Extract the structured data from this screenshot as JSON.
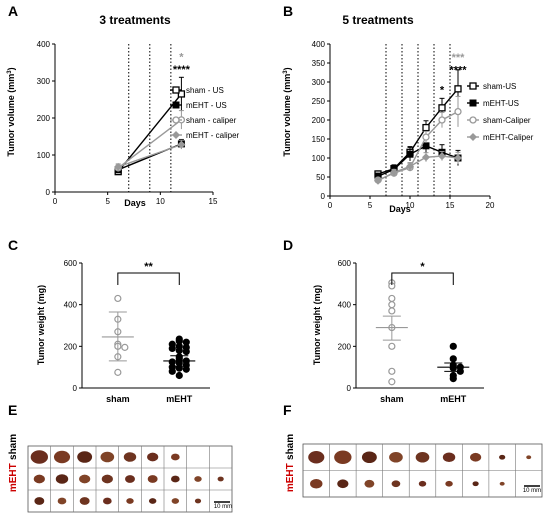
{
  "panels": {
    "A": {
      "letter": "A",
      "chart_data": {
        "type": "line",
        "title": "3 treatments",
        "xlabel": "Days",
        "ylabel": "Tumor volume (mm",
        "ylabel_sup": "3",
        "ylabel_end": ")",
        "xlim": [
          0,
          15
        ],
        "ylim": [
          0,
          400
        ],
        "xticks": [
          0,
          5,
          10,
          15
        ],
        "yticks": [
          0,
          100,
          200,
          300,
          400
        ],
        "treatment_days": [
          7,
          9,
          11
        ],
        "series": [
          {
            "name": "sham - US",
            "color": "#000000",
            "marker": "square-open",
            "x": [
              6,
              12
            ],
            "y": [
              55,
              265
            ],
            "err": [
              8,
              45
            ]
          },
          {
            "name": "mEHT - US",
            "color": "#000000",
            "marker": "square-filled",
            "x": [
              6,
              12
            ],
            "y": [
              60,
              130
            ],
            "err": [
              8,
              12
            ]
          },
          {
            "name": "sham - caliper",
            "color": "#999999",
            "marker": "circle-open",
            "x": [
              6,
              12
            ],
            "y": [
              65,
              195
            ],
            "err": [
              8,
              25
            ]
          },
          {
            "name": "mEHT - caliper",
            "color": "#999999",
            "marker": "diamond-filled",
            "x": [
              6,
              12
            ],
            "y": [
              68,
              128
            ],
            "err": [
              8,
              12
            ]
          }
        ],
        "annotations": [
          {
            "text": "*",
            "color": "#999999",
            "x": 12,
            "y": 355
          },
          {
            "text": "****",
            "color": "#000000",
            "x": 12,
            "y": 322
          }
        ],
        "legend_position": "right"
      }
    },
    "B": {
      "letter": "B",
      "chart_data": {
        "type": "line",
        "title": "5 treatments",
        "xlabel": "Days",
        "ylabel": "Tumor volume (mm",
        "ylabel_sup": "3",
        "ylabel_end": ")",
        "xlim": [
          0,
          20
        ],
        "ylim": [
          0,
          400
        ],
        "xticks": [
          0,
          5,
          10,
          15,
          20
        ],
        "yticks": [
          0,
          50,
          100,
          150,
          200,
          250,
          300,
          350,
          400
        ],
        "treatment_days": [
          7,
          9,
          11,
          13,
          15
        ],
        "series": [
          {
            "name": "sham-US",
            "color": "#000000",
            "marker": "square-open",
            "x": [
              6,
              8,
              10,
              12,
              14,
              16
            ],
            "y": [
              58,
              72,
              115,
              180,
              232,
              282
            ],
            "err": [
              8,
              10,
              15,
              18,
              25,
              50
            ]
          },
          {
            "name": "mEHT-US",
            "color": "#000000",
            "marker": "square-filled",
            "x": [
              6,
              8,
              10,
              12,
              14,
              16
            ],
            "y": [
              52,
              70,
              110,
              132,
              115,
              100
            ],
            "err": [
              8,
              10,
              18,
              20,
              20,
              20
            ]
          },
          {
            "name": "sham-Caliper",
            "color": "#999999",
            "marker": "circle-open",
            "x": [
              6,
              8,
              10,
              12,
              14,
              16
            ],
            "y": [
              42,
              60,
              75,
              155,
              200,
              222
            ],
            "err": [
              6,
              8,
              10,
              15,
              20,
              40
            ]
          },
          {
            "name": "mEHT-Caliper",
            "color": "#999999",
            "marker": "diamond-filled",
            "x": [
              6,
              8,
              10,
              12,
              14,
              16
            ],
            "y": [
              40,
              62,
              78,
              102,
              105,
              100
            ],
            "err": [
              6,
              8,
              10,
              12,
              12,
              15
            ]
          }
        ],
        "annotations": [
          {
            "text": "*",
            "color": "#000000",
            "x": 14,
            "y": 270
          },
          {
            "text": "***",
            "color": "#999999",
            "x": 16,
            "y": 355
          },
          {
            "text": "****",
            "color": "#000000",
            "x": 16,
            "y": 322
          }
        ],
        "legend_position": "right"
      }
    },
    "C": {
      "letter": "C",
      "chart_data": {
        "type": "scatter",
        "xlabel": "",
        "ylabel": "Tumor weight (mg)",
        "ylim": [
          0,
          600
        ],
        "yticks": [
          0,
          200,
          400,
          600
        ],
        "categories": [
          "sham",
          "mEHT"
        ],
        "groups": [
          {
            "name": "sham",
            "filled": false,
            "mean": 245,
            "sem": [
              130,
              365
            ],
            "values": [
              430,
              330,
              270,
              210,
              200,
              195,
              150,
              75
            ]
          },
          {
            "name": "mEHT",
            "filled": true,
            "mean": 130,
            "sem": [
              105,
              155
            ],
            "values": [
              235,
              225,
              220,
              210,
              200,
              195,
              190,
              180,
              175,
              150,
              140,
              130,
              125,
              120,
              110,
              100,
              95,
              90,
              80,
              60
            ]
          }
        ],
        "significance": "**"
      }
    },
    "D": {
      "letter": "D",
      "chart_data": {
        "type": "scatter",
        "xlabel": "",
        "ylabel": "Tumor weight (mg)",
        "ylim": [
          0,
          600
        ],
        "yticks": [
          0,
          200,
          400,
          600
        ],
        "categories": [
          "sham",
          "mEHT"
        ],
        "groups": [
          {
            "name": "sham",
            "filled": false,
            "mean": 290,
            "sem": [
              230,
              345
            ],
            "values": [
              505,
              490,
              430,
              400,
              370,
              290,
              200,
              80,
              30
            ]
          },
          {
            "name": "mEHT",
            "filled": true,
            "mean": 100,
            "sem": [
              80,
              120
            ],
            "values": [
              200,
              140,
              110,
              100,
              95,
              80,
              60,
              45
            ]
          }
        ],
        "significance": "*"
      }
    },
    "E": {
      "letter": "E",
      "row_labels": [
        {
          "text": "sham",
          "color": "#000000"
        },
        {
          "text": "mEHT",
          "color": "#cc0000"
        }
      ],
      "scale_bar": "10 mm",
      "columns": 9,
      "rows": [
        [
          14,
          13,
          12,
          11,
          10,
          9,
          7,
          0,
          0
        ],
        [
          9,
          10,
          9,
          9,
          8,
          8,
          7,
          6,
          5
        ],
        [
          8,
          7,
          8,
          7,
          6,
          6,
          6,
          5,
          0
        ]
      ]
    },
    "F": {
      "letter": "F",
      "row_labels": [
        {
          "text": "sham",
          "color": "#000000"
        },
        {
          "text": "mEHT",
          "color": "#cc0000"
        }
      ],
      "scale_bar": "10 mm",
      "columns": 9,
      "rows": [
        [
          13,
          14,
          12,
          11,
          11,
          10,
          9,
          5,
          4
        ],
        [
          10,
          9,
          8,
          7,
          6,
          6,
          5,
          4,
          0
        ]
      ]
    }
  }
}
